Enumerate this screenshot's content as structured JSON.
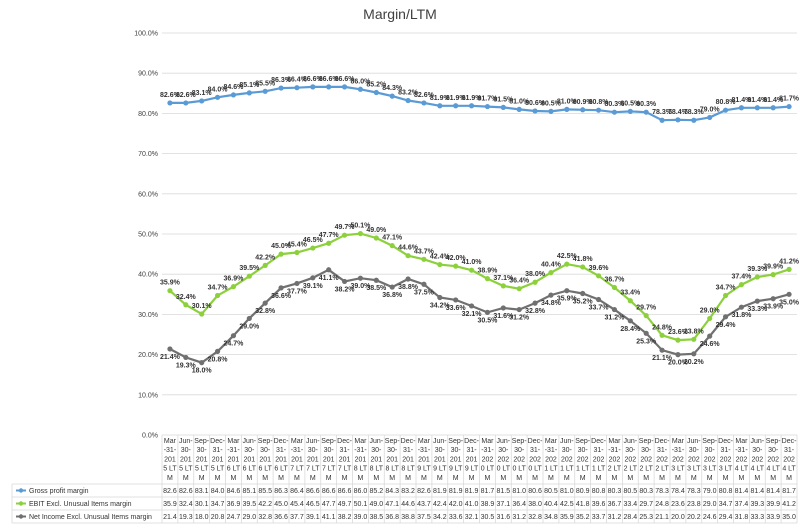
{
  "chart_data": {
    "type": "line",
    "title": "Margin/LTM",
    "xlabel": "",
    "ylabel": "",
    "ylim": [
      0,
      100
    ],
    "y_ticks": [
      "0.0%",
      "10.0%",
      "20.0%",
      "30.0%",
      "40.0%",
      "50.0%",
      "60.0%",
      "70.0%",
      "80.0%",
      "90.0%",
      "100.0%"
    ],
    "grid": true,
    "legend": "bottom-table",
    "categories": [
      "Mar-31-2015LTM",
      "Jun-30-2015LTM",
      "Sep-30-2015LTM",
      "Dec-31-2015LTM",
      "Mar-31-2016LTM",
      "Jun-30-2016LTM",
      "Sep-30-2016LTM",
      "Dec-31-2016LTM",
      "Mar-31-2017LTM",
      "Jun-30-2017LTM",
      "Sep-30-2017LTM",
      "Dec-31-2017LTM",
      "Mar-31-2018LTM",
      "Jun-30-2018LTM",
      "Sep-30-2018LTM",
      "Dec-31-2018LTM",
      "Mar-31-2019LTM",
      "Jun-30-2019LTM",
      "Sep-30-2019LTM",
      "Dec-31-2019LTM",
      "Mar-31-2020LTM",
      "Jun-30-2020LTM",
      "Sep-30-2020LTM",
      "Dec-31-2020LTM",
      "Mar-31-2021LTM",
      "Jun-30-2021LTM",
      "Sep-30-2021LTM",
      "Dec-31-2021LTM",
      "Mar-31-2022LTM",
      "Jun-30-2022LTM",
      "Sep-30-2022LTM",
      "Dec-31-2022LTM",
      "Mar-31-2023LTM",
      "Jun-30-2023LTM",
      "Sep-30-2023LTM",
      "Dec-31-2023LTM",
      "Mar-31-2024LTM",
      "Jun-30-2024LTM",
      "Sep-30-2024LTM",
      "Dec-31-2024LTM"
    ],
    "category_lines": [
      [
        "Mar",
        "-31-",
        "201",
        "5 LT",
        "M"
      ],
      [
        "Jun-",
        "30-",
        "201",
        "5 LT",
        "M"
      ],
      [
        "Sep-",
        "30-",
        "201",
        "5 LT",
        "M"
      ],
      [
        "Dec-",
        "31-",
        "201",
        "5 LT",
        "M"
      ],
      [
        "Mar",
        "-31-",
        "201",
        "6 LT",
        "M"
      ],
      [
        "Jun-",
        "30-",
        "201",
        "6 LT",
        "M"
      ],
      [
        "Sep-",
        "30-",
        "201",
        "6 LT",
        "M"
      ],
      [
        "Dec-",
        "31-",
        "201",
        "6 LT",
        "M"
      ],
      [
        "Mar",
        "-31-",
        "201",
        "7 LT",
        "M"
      ],
      [
        "Jun-",
        "30-",
        "201",
        "7 LT",
        "M"
      ],
      [
        "Sep-",
        "30-",
        "201",
        "7 LT",
        "M"
      ],
      [
        "Dec-",
        "31-",
        "201",
        "7 LT",
        "M"
      ],
      [
        "Mar",
        "-31-",
        "201",
        "8 LT",
        "M"
      ],
      [
        "Jun-",
        "30-",
        "201",
        "8 LT",
        "M"
      ],
      [
        "Sep-",
        "30-",
        "201",
        "8 LT",
        "M"
      ],
      [
        "Dec-",
        "31-",
        "201",
        "8 LT",
        "M"
      ],
      [
        "Mar",
        "-31-",
        "201",
        "9 LT",
        "M"
      ],
      [
        "Jun-",
        "30-",
        "201",
        "9 LT",
        "M"
      ],
      [
        "Sep-",
        "30-",
        "201",
        "9 LT",
        "M"
      ],
      [
        "Dec-",
        "31-",
        "201",
        "9 LT",
        "M"
      ],
      [
        "Mar",
        "-31-",
        "202",
        "0 LT",
        "M"
      ],
      [
        "Jun-",
        "30-",
        "202",
        "0 LT",
        "M"
      ],
      [
        "Sep-",
        "30-",
        "202",
        "0 LT",
        "M"
      ],
      [
        "Dec-",
        "31-",
        "202",
        "0 LT",
        "M"
      ],
      [
        "Mar",
        "-31-",
        "202",
        "1 LT",
        "M"
      ],
      [
        "Jun-",
        "30-",
        "202",
        "1 LT",
        "M"
      ],
      [
        "Sep-",
        "30-",
        "202",
        "1 LT",
        "M"
      ],
      [
        "Dec-",
        "31-",
        "202",
        "1 LT",
        "M"
      ],
      [
        "Mar",
        "-31-",
        "202",
        "2 LT",
        "M"
      ],
      [
        "Jun-",
        "30-",
        "202",
        "2 LT",
        "M"
      ],
      [
        "Sep-",
        "30-",
        "202",
        "2 LT",
        "M"
      ],
      [
        "Dec-",
        "31-",
        "202",
        "2 LT",
        "M"
      ],
      [
        "Mar",
        "-31-",
        "202",
        "3 LT",
        "M"
      ],
      [
        "Jun-",
        "30-",
        "202",
        "3 LT",
        "M"
      ],
      [
        "Sep-",
        "30-",
        "202",
        "3 LT",
        "M"
      ],
      [
        "Dec-",
        "31-",
        "202",
        "3 LT",
        "M"
      ],
      [
        "Mar",
        "-31-",
        "202",
        "4 LT",
        "M"
      ],
      [
        "Jun-",
        "30-",
        "202",
        "4 LT",
        "M"
      ],
      [
        "Sep-",
        "30-",
        "202",
        "4 LT",
        "M"
      ],
      [
        "Dec-",
        "31-",
        "202",
        "4 LT",
        "M"
      ]
    ],
    "series": [
      {
        "name": "Gross profit margin",
        "color": "#5B9BD5",
        "values": [
          82.6,
          82.6,
          83.1,
          84.0,
          84.6,
          85.1,
          85.5,
          86.3,
          86.4,
          86.6,
          86.6,
          86.6,
          86.0,
          85.2,
          84.3,
          83.2,
          82.6,
          81.9,
          81.9,
          81.9,
          81.7,
          81.5,
          81.0,
          80.6,
          80.5,
          81.0,
          80.9,
          80.8,
          80.3,
          80.5,
          80.3,
          78.3,
          78.4,
          78.3,
          79.0,
          80.8,
          81.4,
          81.4,
          81.4,
          81.7
        ]
      },
      {
        "name": "EBIT Excl. Unusual Items margin",
        "color": "#8CD13C",
        "values": [
          35.9,
          32.4,
          30.1,
          34.7,
          36.9,
          39.5,
          42.2,
          45.0,
          45.4,
          46.5,
          47.7,
          49.7,
          50.1,
          49.0,
          47.1,
          44.6,
          43.7,
          42.4,
          42.0,
          41.0,
          38.9,
          37.1,
          36.4,
          38.0,
          40.4,
          42.5,
          41.8,
          39.6,
          36.7,
          33.4,
          29.7,
          24.8,
          23.6,
          23.8,
          29.0,
          34.7,
          37.4,
          39.3,
          39.9,
          41.2
        ]
      },
      {
        "name": "Net Income Excl. Unusual Items margin",
        "color": "#707070",
        "values": [
          21.4,
          19.3,
          18.0,
          20.8,
          24.7,
          29.0,
          32.8,
          36.6,
          37.7,
          39.1,
          41.1,
          38.2,
          39.0,
          38.5,
          36.8,
          38.8,
          37.5,
          34.2,
          33.6,
          32.1,
          30.5,
          31.6,
          31.2,
          32.8,
          34.8,
          35.9,
          35.2,
          33.7,
          31.2,
          28.4,
          25.3,
          21.1,
          20.0,
          20.2,
          24.6,
          29.4,
          31.8,
          33.3,
          33.9,
          35.0
        ]
      }
    ]
  }
}
